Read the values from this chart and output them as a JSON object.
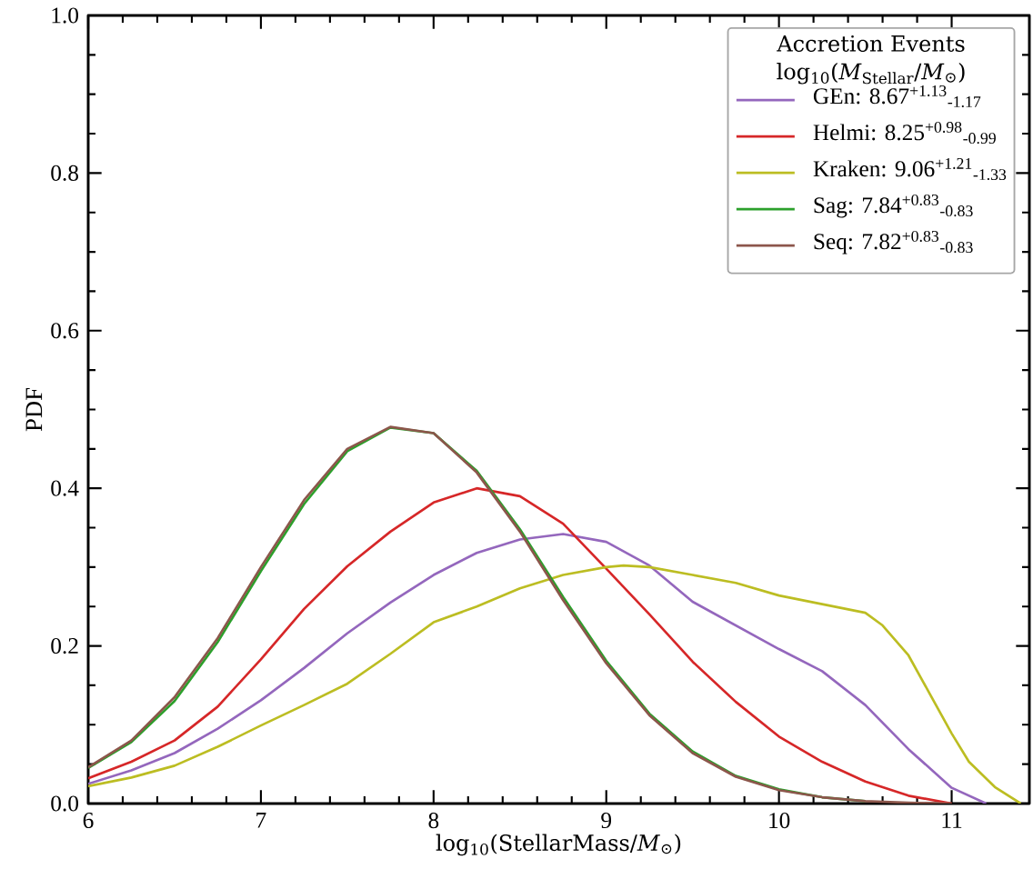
{
  "chart_data": {
    "type": "line",
    "xlabel": "log$_{10}$(StellarMass/*M*$_{⊙}$)",
    "ylabel": "PDF",
    "legend_title": "Accretion Events log$_{10}$(*M*$_{Stellar}$/*M*$_{⊙}$)",
    "legend": "top right",
    "marker": "none",
    "line_style": "solid",
    "xlim": [
      6,
      11.45
    ],
    "ylim": [
      0,
      1
    ],
    "xticks": [
      6,
      7,
      8,
      9,
      10,
      11
    ],
    "yticks": [
      {
        "value": 0,
        "label": "0.0"
      },
      0.2,
      0.4,
      0.6,
      0.8,
      {
        "value": 1,
        "label": "1.0"
      }
    ],
    "series": [
      {
        "name": "GEn: 8.67$^{+1.13}$$_{-1.17}$",
        "color": "#9467bd",
        "x": [
          6,
          6.25,
          6.5,
          6.75,
          7,
          7.25,
          7.5,
          7.75,
          8,
          8.25,
          8.5,
          8.75,
          9,
          9.25,
          9.5,
          9.75,
          10,
          10.25,
          10.5,
          10.75,
          11,
          11.2
        ],
        "values": [
          0.025,
          0.042,
          0.064,
          0.095,
          0.131,
          0.172,
          0.216,
          0.255,
          0.29,
          0.318,
          0.335,
          0.342,
          0.332,
          0.302,
          0.256,
          0.226,
          0.196,
          0.168,
          0.125,
          0.069,
          0.02,
          0
        ]
      },
      {
        "name": "Helmi: 8.25$^{+0.98}$$_{-0.99}$",
        "color": "#d62728",
        "x": [
          6,
          6.25,
          6.5,
          6.75,
          7,
          7.25,
          7.5,
          7.75,
          8,
          8.25,
          8.5,
          8.75,
          9,
          9.25,
          9.5,
          9.75,
          10,
          10.25,
          10.5,
          10.75,
          11
        ],
        "values": [
          0.032,
          0.053,
          0.08,
          0.123,
          0.183,
          0.247,
          0.301,
          0.345,
          0.382,
          0.4,
          0.39,
          0.355,
          0.298,
          0.24,
          0.18,
          0.129,
          0.085,
          0.053,
          0.028,
          0.01,
          0
        ]
      },
      {
        "name": "Kraken: 9.06$^{+1.21}$$_{-1.33}$",
        "color": "#bcbd22",
        "x": [
          6,
          6.25,
          6.5,
          6.75,
          7,
          7.25,
          7.5,
          7.75,
          8,
          8.25,
          8.5,
          8.75,
          9,
          9.1,
          9.25,
          9.5,
          9.75,
          10,
          10.25,
          10.5,
          10.6,
          10.75,
          11,
          11.1,
          11.25,
          11.4
        ],
        "values": [
          0.022,
          0.033,
          0.048,
          0.072,
          0.099,
          0.125,
          0.152,
          0.19,
          0.23,
          0.25,
          0.273,
          0.29,
          0.3,
          0.302,
          0.3,
          0.29,
          0.28,
          0.264,
          0.253,
          0.242,
          0.226,
          0.188,
          0.089,
          0.053,
          0.021,
          0
        ]
      },
      {
        "name": "Sag: 7.84$^{+0.83}$$_{-0.83}$",
        "color": "#2ca02c",
        "x": [
          6,
          6.25,
          6.5,
          6.75,
          7,
          7.25,
          7.5,
          7.75,
          8,
          8.25,
          8.5,
          8.75,
          9,
          9.25,
          9.5,
          9.75,
          10,
          10.25,
          10.5
        ],
        "values": [
          0.045,
          0.078,
          0.13,
          0.205,
          0.295,
          0.38,
          0.447,
          0.477,
          0.47,
          0.422,
          0.348,
          0.262,
          0.181,
          0.114,
          0.066,
          0.035,
          0.018,
          0.008,
          0.003
        ]
      },
      {
        "name": "Seq: 7.82$^{+0.83}$$_{-0.83}$",
        "color": "#8c564b",
        "x": [
          6,
          6.25,
          6.5,
          6.75,
          7,
          7.25,
          7.5,
          7.75,
          8,
          8.25,
          8.5,
          8.75,
          9,
          9.25,
          9.5,
          9.75,
          10,
          10.25,
          10.5,
          10.75,
          11
        ],
        "values": [
          0.046,
          0.08,
          0.135,
          0.21,
          0.3,
          0.385,
          0.45,
          0.478,
          0.47,
          0.42,
          0.345,
          0.258,
          0.178,
          0.112,
          0.064,
          0.034,
          0.017,
          0.008,
          0.003,
          0.001,
          0
        ]
      }
    ]
  }
}
